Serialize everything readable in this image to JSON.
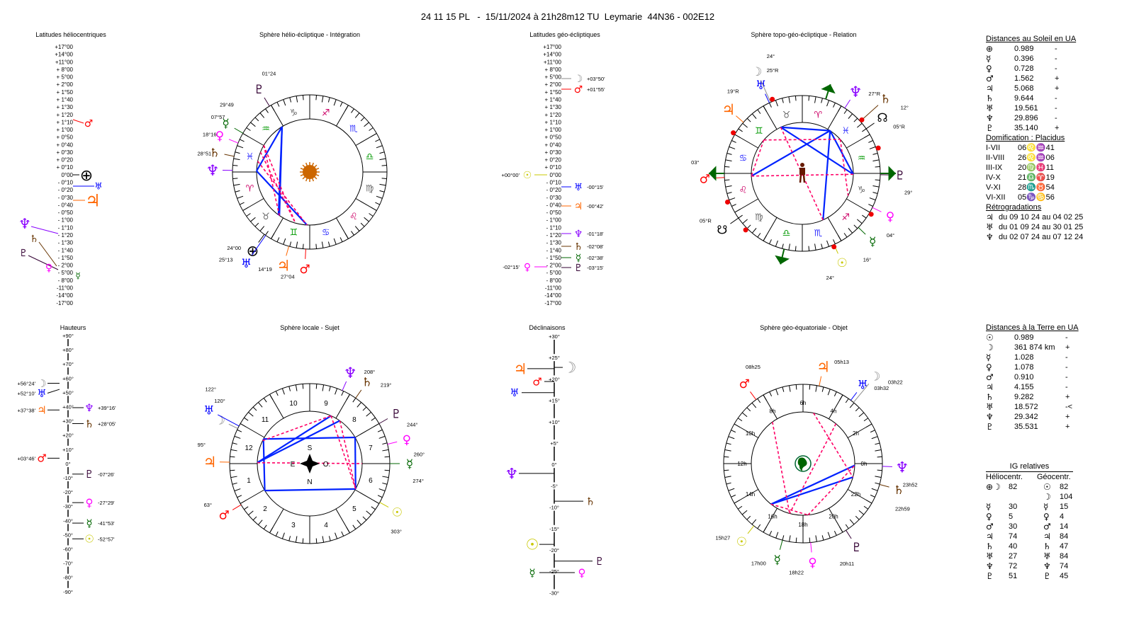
{
  "title": "24 11 15 PL   -  15/11/2024 à 21h28m12 TU  Leymarie  44N36 - 002E12",
  "planets": {
    "sun": {
      "glyph": "☉",
      "color": "#c8c800"
    },
    "moon": {
      "glyph": "☽",
      "color": "#8c8c8c"
    },
    "mercury": {
      "glyph": "☿",
      "color": "#006600"
    },
    "venus": {
      "glyph": "♀",
      "color": "#ff00ff"
    },
    "mars": {
      "glyph": "♂",
      "color": "#ff0000"
    },
    "jupiter": {
      "glyph": "♃",
      "color": "#ff6600"
    },
    "saturn": {
      "glyph": "♄",
      "color": "#663300"
    },
    "uranus": {
      "glyph": "♅",
      "color": "#0000ff"
    },
    "neptune": {
      "glyph": "♆",
      "color": "#8800ff"
    },
    "pluto": {
      "glyph": "♇",
      "color": "#330033"
    },
    "earth": {
      "glyph": "⊕",
      "color": "#000000"
    },
    "node": {
      "glyph": "☊",
      "color": "#000000"
    },
    "snode": {
      "glyph": "☋",
      "color": "#000000"
    }
  },
  "signs": [
    {
      "glyph": "♈",
      "color": "#cc0066"
    },
    {
      "glyph": "♉",
      "color": "#666666"
    },
    {
      "glyph": "♊",
      "color": "#009900"
    },
    {
      "glyph": "♋",
      "color": "#3333ff"
    },
    {
      "glyph": "♌",
      "color": "#cc0066"
    },
    {
      "glyph": "♍",
      "color": "#666666"
    },
    {
      "glyph": "♎",
      "color": "#009900"
    },
    {
      "glyph": "♏",
      "color": "#3333ff"
    },
    {
      "glyph": "♐",
      "color": "#cc0066"
    },
    {
      "glyph": "♑",
      "color": "#666666"
    },
    {
      "glyph": "♒",
      "color": "#009900"
    },
    {
      "glyph": "♓",
      "color": "#3333ff"
    }
  ],
  "lat_scale": [
    "+17°00",
    "+14°00",
    "+11°00",
    "+ 8°00",
    "+ 5°00",
    "+ 2°00",
    "+ 1°50",
    "+ 1°40",
    "+ 1°30",
    "+ 1°20",
    "+ 1°10",
    "+ 1°00",
    "+ 0°50",
    "+ 0°40",
    "+ 0°30",
    "+ 0°20",
    "+ 0°10",
    "0°00",
    "- 0°10",
    "- 0°20",
    "- 0°30",
    "- 0°40",
    "- 0°50",
    "- 1°00",
    "- 1°10",
    "- 1°20",
    "- 1°30",
    "- 1°40",
    "- 1°50",
    "- 2°00",
    "- 5°00",
    "- 8°00",
    "-11°00",
    "-14°00",
    "-17°00"
  ],
  "helio_lat": {
    "title": "Latitudes héliocentriques",
    "markers": [
      {
        "planet": "mars"
      },
      {
        "planet": "earth"
      },
      {
        "planet": "uranus"
      },
      {
        "planet": "jupiter"
      },
      {
        "planet": "neptune"
      },
      {
        "planet": "saturn"
      },
      {
        "planet": "pluto"
      },
      {
        "planet": "venus"
      },
      {
        "planet": "mercury"
      }
    ]
  },
  "helio_wheel": {
    "title": "Sphère hélio-écliptique - Intégration",
    "planets": [
      {
        "planet": "pluto",
        "lon": 301.4,
        "label": "01°24"
      },
      {
        "planet": "mercury",
        "lon": 329.8,
        "label": "29°49"
      },
      {
        "planet": "venus",
        "lon": 337.95,
        "label": "07°57"
      },
      {
        "planet": "saturn",
        "lon": 348.27,
        "label": "18°16"
      },
      {
        "planet": "neptune",
        "lon": 358.85,
        "label": "28°51"
      },
      {
        "planet": "earth",
        "lon": 54.0,
        "label": "24°00"
      },
      {
        "planet": "uranus",
        "lon": 55.22,
        "label": "25°13"
      },
      {
        "planet": "jupiter",
        "lon": 74.32,
        "label": "14°19"
      },
      {
        "planet": "mars",
        "lon": 87.07,
        "label": "27°04"
      }
    ],
    "aspects": [
      {
        "a": "pluto",
        "b": "uranus",
        "type": "major"
      },
      {
        "a": "neptune",
        "b": "pluto",
        "type": "major"
      },
      {
        "a": "neptune",
        "b": "mars",
        "type": "major"
      },
      {
        "a": "pluto",
        "b": "earth",
        "type": "major"
      },
      {
        "a": "mercury",
        "b": "uranus",
        "type": "minor"
      },
      {
        "a": "venus",
        "b": "jupiter",
        "type": "minor"
      },
      {
        "a": "saturn",
        "b": "mars",
        "type": "minor"
      },
      {
        "a": "mercury",
        "b": "jupiter",
        "type": "minor"
      }
    ]
  },
  "geo_lat": {
    "title": "Latitudes géo-écliptiques",
    "markers": [
      {
        "planet": "moon",
        "label": "+03°50'"
      },
      {
        "planet": "mars",
        "label": "+01°55'"
      },
      {
        "planet": "sun",
        "label": "+00°00'"
      },
      {
        "planet": "uranus",
        "label": "-00°15'"
      },
      {
        "planet": "jupiter",
        "label": "-00°42'"
      },
      {
        "planet": "neptune",
        "label": "-01°18'"
      },
      {
        "planet": "saturn",
        "label": "-02°08'"
      },
      {
        "planet": "mercury",
        "label": "-02°38'"
      },
      {
        "planet": "venus",
        "label": "-02°15'"
      },
      {
        "planet": "pluto",
        "label": "-03°15'"
      }
    ]
  },
  "topo_wheel": {
    "title": "Sphère topo-géo-écliptique - Relation",
    "planets": [
      {
        "planet": "uranus",
        "lon": 55,
        "label": "25°R"
      },
      {
        "planet": "moon",
        "lon": 54,
        "label": "24°"
      },
      {
        "planet": "jupiter",
        "lon": 79,
        "label": "19°R"
      },
      {
        "planet": "mars",
        "lon": 123,
        "label": "03°"
      },
      {
        "planet": "node",
        "lon": 335,
        "label": "05°R"
      },
      {
        "planet": "neptune",
        "lon": 357,
        "label": "27°R"
      },
      {
        "planet": "saturn",
        "lon": 342,
        "label": "12°"
      },
      {
        "planet": "pluto",
        "lon": 299,
        "label": "29°"
      },
      {
        "planet": "venus",
        "lon": 274,
        "label": "04°"
      },
      {
        "planet": "mercury",
        "lon": 256,
        "label": "16°"
      },
      {
        "planet": "sun",
        "lon": 234,
        "label": "24°"
      },
      {
        "planet": "snode",
        "lon": 155,
        "label": "05°R"
      }
    ],
    "aspects": [
      {
        "a": "uranus",
        "b": "neptune",
        "type": "major"
      },
      {
        "a": "uranus",
        "b": "pluto",
        "type": "major"
      },
      {
        "a": "mars",
        "b": "neptune",
        "type": "major"
      },
      {
        "a": "neptune",
        "b": "sun",
        "type": "major"
      },
      {
        "a": "neptune",
        "b": "pluto",
        "type": "major"
      },
      {
        "a": "mars",
        "b": "pluto",
        "type": "minor"
      },
      {
        "a": "jupiter",
        "b": "saturn",
        "type": "minor"
      },
      {
        "a": "uranus",
        "b": "sun",
        "type": "minor"
      },
      {
        "a": "saturn",
        "b": "venus",
        "type": "minor"
      },
      {
        "a": "jupiter",
        "b": "mars",
        "type": "minor"
      }
    ]
  },
  "heights": {
    "title": "Hauteurs",
    "scale": [
      "+90°",
      "+80°",
      "+70°",
      "+60°",
      "+50°",
      "+40°",
      "+30°",
      "+20°",
      "+10°",
      "0°",
      "-10°",
      "-20°",
      "-30°",
      "-40°",
      "-50°",
      "-60°",
      "-70°",
      "-80°",
      "-90°"
    ],
    "markers": [
      {
        "planet": "moon",
        "value": 56.4,
        "label": "+56°24'",
        "side": "left"
      },
      {
        "planet": "uranus",
        "value": 52.17,
        "label": "+52°10'",
        "side": "left"
      },
      {
        "planet": "jupiter",
        "value": 37.63,
        "label": "+37°38'",
        "side": "left"
      },
      {
        "planet": "mars",
        "value": 3.77,
        "label": "+03°46'",
        "side": "left"
      },
      {
        "planet": "neptune",
        "value": 39.27,
        "label": "+39°16'",
        "side": "right"
      },
      {
        "planet": "saturn",
        "value": 28.08,
        "label": "+28°05'",
        "side": "right"
      },
      {
        "planet": "pluto",
        "value": -7.43,
        "label": "-07°26'",
        "side": "right"
      },
      {
        "planet": "venus",
        "value": -27.48,
        "label": "-27°29'",
        "side": "right"
      },
      {
        "planet": "mercury",
        "value": -41.88,
        "label": "-41°53'",
        "side": "right"
      },
      {
        "planet": "sun",
        "value": -52.95,
        "label": "-52°57'",
        "side": "right"
      }
    ]
  },
  "local_wheel": {
    "title": "Sphère locale - Sujet",
    "houses": [
      "1",
      "2",
      "3",
      "4",
      "5",
      "6",
      "7",
      "8",
      "9",
      "10",
      "11",
      "12"
    ],
    "compass": {
      "south": "S",
      "east": "E",
      "west": "O.",
      "north": "N"
    },
    "planets": [
      {
        "planet": "neptune",
        "az": 208,
        "label": "208°"
      },
      {
        "planet": "saturn",
        "az": 219,
        "label": "219°"
      },
      {
        "planet": "pluto",
        "az": 244,
        "label": "244°"
      },
      {
        "planet": "venus",
        "az": 260,
        "label": "260°"
      },
      {
        "planet": "mercury",
        "az": 274,
        "label": "274°"
      },
      {
        "planet": "sun",
        "az": 303,
        "label": "303°"
      },
      {
        "planet": "mars",
        "az": 63,
        "label": "63°"
      },
      {
        "planet": "jupiter",
        "az": 95,
        "label": "95°"
      },
      {
        "planet": "moon",
        "az": 120,
        "label": "120°"
      },
      {
        "planet": "uranus",
        "az": 122,
        "label": "122°"
      }
    ],
    "aspects": [
      {
        "a": "uranus",
        "b": "pluto",
        "type": "major"
      },
      {
        "a": "uranus",
        "b": "mars",
        "type": "major"
      },
      {
        "a": "mars",
        "b": "sun",
        "type": "major"
      },
      {
        "a": "pluto",
        "b": "sun",
        "type": "major"
      },
      {
        "a": "jupiter",
        "b": "neptune",
        "type": "major"
      },
      {
        "a": "jupiter",
        "b": "saturn",
        "type": "major"
      },
      {
        "a": "moon",
        "b": "neptune",
        "type": "minor"
      },
      {
        "a": "neptune",
        "b": "sun",
        "type": "minor"
      },
      {
        "a": "saturn",
        "b": "sun",
        "type": "minor"
      },
      {
        "a": "jupiter",
        "b": "mercury",
        "type": "minor"
      }
    ]
  },
  "declinations": {
    "title": "Déclinaisons",
    "scale": [
      "+30°",
      "+25°",
      "+20°",
      "+15°",
      "+10°",
      "+5°",
      "0°",
      "-5°",
      "-10°",
      "-15°",
      "-20°",
      "-25°",
      "-30°"
    ],
    "markers": [
      {
        "planet": "jupiter",
        "value": 22.4
      },
      {
        "planet": "moon",
        "value": 22.7
      },
      {
        "planet": "mars",
        "value": 19.4
      },
      {
        "planet": "uranus",
        "value": 16.8
      },
      {
        "planet": "neptune",
        "value": -2.1
      },
      {
        "planet": "saturn",
        "value": -8.6
      },
      {
        "planet": "sun",
        "value": -18.7
      },
      {
        "planet": "pluto",
        "value": -22.6
      },
      {
        "planet": "mercury",
        "value": -25.3
      },
      {
        "planet": "venus",
        "value": -25.3
      }
    ]
  },
  "geo_eq_wheel": {
    "title": "Sphère géo-équatoriale - Objet",
    "hours": [
      "0h",
      "2h",
      "4h",
      "6h",
      "8h",
      "10h",
      "12h",
      "14h",
      "16h",
      "18h",
      "20h",
      "22h"
    ],
    "planets": [
      {
        "planet": "jupiter",
        "hours": 5.217,
        "label": "05h13"
      },
      {
        "planet": "uranus",
        "hours": 3.533,
        "label": "03h32"
      },
      {
        "planet": "moon",
        "hours": 3.367,
        "label": "03h22"
      },
      {
        "planet": "mars",
        "hours": 8.417,
        "label": "08h25"
      },
      {
        "planet": "neptune",
        "hours": 23.867,
        "label": "23h52"
      },
      {
        "planet": "saturn",
        "hours": 22.983,
        "label": "22h59"
      },
      {
        "planet": "pluto",
        "hours": 20.183,
        "label": "20h11"
      },
      {
        "planet": "venus",
        "hours": 18.367,
        "label": "18h22"
      },
      {
        "planet": "mercury",
        "hours": 17.0,
        "label": "17h00"
      },
      {
        "planet": "sun",
        "hours": 15.45,
        "label": "15h27"
      }
    ],
    "aspects": [
      {
        "a": "sun",
        "b": "neptune",
        "type": "major"
      },
      {
        "a": "sun",
        "b": "saturn",
        "type": "major"
      },
      {
        "a": "jupiter",
        "b": "saturn",
        "type": "minor"
      },
      {
        "a": "sun",
        "b": "venus",
        "type": "minor"
      },
      {
        "a": "mars",
        "b": "mercury",
        "type": "minor"
      },
      {
        "a": "moon",
        "b": "mercury",
        "type": "minor"
      },
      {
        "a": "venus",
        "b": "neptune",
        "type": "minor"
      }
    ]
  },
  "sun_distances": {
    "heading": "Distances au Soleil en UA",
    "rows": [
      {
        "planet": "earth",
        "value": "0.989",
        "trend": "-"
      },
      {
        "planet": "mercury",
        "value": "0.396",
        "trend": "-"
      },
      {
        "planet": "venus",
        "value": "0.728",
        "trend": "-"
      },
      {
        "planet": "mars",
        "value": "1.562",
        "trend": "+"
      },
      {
        "planet": "jupiter",
        "value": "5.068",
        "trend": "+"
      },
      {
        "planet": "saturn",
        "value": "9.644",
        "trend": "-"
      },
      {
        "planet": "uranus",
        "value": "19.561",
        "trend": "-"
      },
      {
        "planet": "neptune",
        "value": "29.896",
        "trend": "-"
      },
      {
        "planet": "pluto",
        "value": "35.140",
        "trend": "+"
      }
    ]
  },
  "domification": {
    "heading": "Domification : Placidus",
    "rows": [
      {
        "houses": "I-VII",
        "value": "06♌♒41"
      },
      {
        "houses": "II-VIII",
        "value": "26♌♒06"
      },
      {
        "houses": "III-IX",
        "value": "20♍♓11"
      },
      {
        "houses": "IV-X",
        "value": "21♎♈19"
      },
      {
        "houses": "V-XI",
        "value": "28♏♉54"
      },
      {
        "houses": "VI-XII",
        "value": "05♑♋56"
      }
    ]
  },
  "retrogradations": {
    "heading": "Rétrogradations",
    "rows": [
      {
        "planet": "jupiter",
        "text": "du 09 10 24 au 04 02 25"
      },
      {
        "planet": "uranus",
        "text": "du 01 09 24 au 30 01 25"
      },
      {
        "planet": "neptune",
        "text": "du 02 07 24 au 07 12 24"
      }
    ]
  },
  "earth_distances": {
    "heading": "Distances à la Terre en UA",
    "rows": [
      {
        "planet": "sun",
        "value": "0.989",
        "trend": "-"
      },
      {
        "planet": "moon",
        "value": "361 874 km",
        "trend": "+"
      },
      {
        "planet": "mercury",
        "value": "1.028",
        "trend": "-"
      },
      {
        "planet": "venus",
        "value": "1.078",
        "trend": "-"
      },
      {
        "planet": "mars",
        "value": "0.910",
        "trend": "-"
      },
      {
        "planet": "jupiter",
        "value": "4.155",
        "trend": "-"
      },
      {
        "planet": "saturn",
        "value": "9.282",
        "trend": "+"
      },
      {
        "planet": "uranus",
        "value": "18.572",
        "trend": "-<"
      },
      {
        "planet": "neptune",
        "value": "29.342",
        "trend": "+"
      },
      {
        "planet": "pluto",
        "value": "35.531",
        "trend": "+"
      }
    ]
  },
  "ig_relatives": {
    "heading": "IG relatives",
    "helio_header": "Héliocentr.",
    "geo_header": "Géocentr.",
    "rows": [
      {
        "helio_glyph": "⊕☽",
        "helio_value": "82",
        "geo_planet": "sun",
        "geo_value": "82"
      },
      {
        "helio_glyph": "",
        "helio_value": "",
        "geo_planet": "moon",
        "geo_value": "104"
      },
      {
        "helio_glyph": "☿",
        "helio_value": "30",
        "geo_planet": "mercury",
        "geo_value": "15"
      },
      {
        "helio_glyph": "♀",
        "helio_value": "5",
        "geo_planet": "venus",
        "geo_value": "4"
      },
      {
        "helio_glyph": "♂",
        "helio_value": "30",
        "geo_planet": "mars",
        "geo_value": "14"
      },
      {
        "helio_glyph": "♃",
        "helio_value": "74",
        "geo_planet": "jupiter",
        "geo_value": "84"
      },
      {
        "helio_glyph": "♄",
        "helio_value": "40",
        "geo_planet": "saturn",
        "geo_value": "47"
      },
      {
        "helio_glyph": "♅",
        "helio_value": "27",
        "geo_planet": "uranus",
        "geo_value": "84"
      },
      {
        "helio_glyph": "♆",
        "helio_value": "72",
        "geo_planet": "neptune",
        "geo_value": "74"
      },
      {
        "helio_glyph": "♇",
        "helio_value": "51",
        "geo_planet": "pluto",
        "geo_value": "45"
      }
    ]
  }
}
